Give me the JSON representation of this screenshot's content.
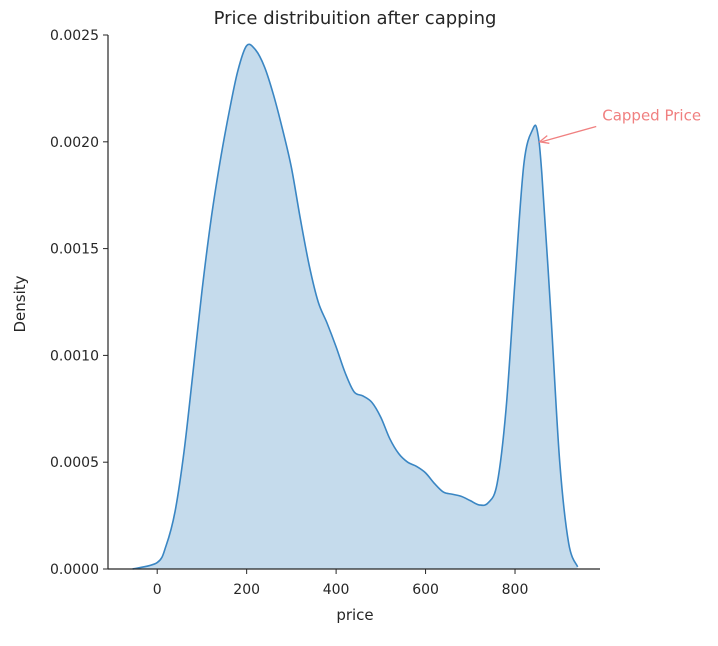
{
  "chart_data": {
    "type": "area",
    "title": "Price distribuition after capping",
    "xlabel": "price",
    "ylabel": "Density",
    "xlim": [
      -110,
      990
    ],
    "ylim": [
      0,
      0.0025
    ],
    "xticks": [
      0,
      200,
      400,
      600,
      800
    ],
    "xtick_labels": [
      "0",
      "200",
      "400",
      "600",
      "800"
    ],
    "yticks": [
      0,
      0.0005,
      0.001,
      0.0015,
      0.002,
      0.0025
    ],
    "ytick_labels": [
      "0.0000",
      "0.0005",
      "0.0010",
      "0.0015",
      "0.0020",
      "0.0025"
    ],
    "grid": false,
    "series": [
      {
        "x": [
          -55,
          0,
          20,
          40,
          60,
          80,
          100,
          120,
          140,
          160,
          180,
          200,
          220,
          240,
          260,
          280,
          300,
          320,
          340,
          360,
          380,
          400,
          420,
          440,
          460,
          480,
          500,
          520,
          540,
          560,
          580,
          600,
          620,
          640,
          660,
          680,
          700,
          720,
          740,
          760,
          780,
          800,
          820,
          840,
          850,
          860,
          880,
          900,
          920,
          940
        ],
        "y": [
          0.0,
          3e-05,
          0.00011,
          0.00027,
          0.00055,
          0.00092,
          0.0013,
          0.00163,
          0.0019,
          0.00213,
          0.00233,
          0.00245,
          0.00243,
          0.00235,
          0.00222,
          0.00206,
          0.00188,
          0.00164,
          0.00142,
          0.00125,
          0.00115,
          0.00104,
          0.00092,
          0.00083,
          0.00081,
          0.00078,
          0.00071,
          0.00061,
          0.00054,
          0.0005,
          0.00048,
          0.00045,
          0.0004,
          0.00036,
          0.00035,
          0.00034,
          0.00032,
          0.0003,
          0.00031,
          0.0004,
          0.00075,
          0.00135,
          0.0019,
          0.00206,
          0.00205,
          0.00185,
          0.0012,
          0.0005,
          0.00012,
          1e-05
        ],
        "line_color": "#3a86c3",
        "fill_color": "#c5dbec"
      }
    ],
    "annotation": {
      "text": "Capped Price",
      "color": "#f08080",
      "xy": [
        855,
        0.002
      ],
      "xytext": [
        995,
        0.0021
      ]
    }
  }
}
